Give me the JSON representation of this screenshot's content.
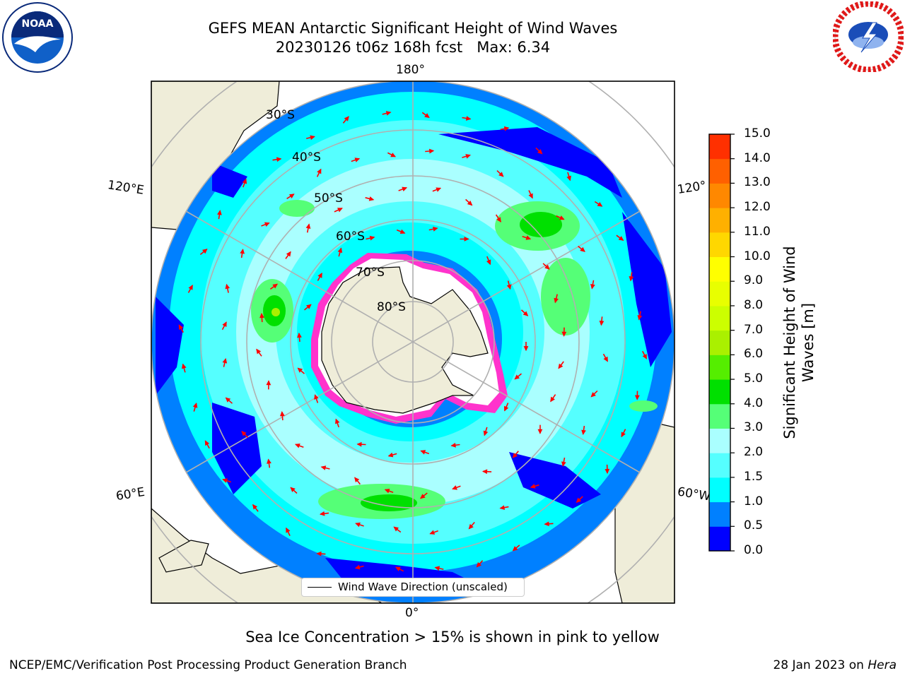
{
  "title": {
    "line1": "GEFS MEAN Antarctic Significant Height of Wind Waves",
    "line2": "20230126 t06z 168h fcst   Max: 6.34"
  },
  "logos": {
    "left": "NOAA",
    "right": "NATIONAL WEATHER SERVICE"
  },
  "map": {
    "projection": "south-polar-stereographic",
    "lon_labels": [
      "180°",
      "120°E",
      "120°",
      "60°E",
      "60°W",
      "0°"
    ],
    "lat_labels": [
      "30°S",
      "40°S",
      "50°S",
      "60°S",
      "70°S",
      "80°S"
    ],
    "colors": {
      "land": "#efedd9",
      "ice_pink": "#ff33cc",
      "arrows": "#ff0000",
      "graticule": "#b0b0b0"
    }
  },
  "legend": {
    "label": "Wind Wave Direction (unscaled)"
  },
  "colorbar": {
    "label": "Significant Height of Wind Waves [m]",
    "ticks": [
      "15.0",
      "14.0",
      "13.0",
      "12.0",
      "11.0",
      "10.0",
      "9.0",
      "8.0",
      "7.0",
      "6.0",
      "5.0",
      "4.0",
      "3.0",
      "2.0",
      "1.5",
      "1.0",
      "0.5",
      "0.0"
    ],
    "colors": [
      "#0000ff",
      "#0080ff",
      "#00ffff",
      "#55ffff",
      "#aaffff",
      "#55ff77",
      "#00e000",
      "#55ee00",
      "#aaf000",
      "#ccff00",
      "#e8ff00",
      "#ffff00",
      "#ffd700",
      "#ffb000",
      "#ff8800",
      "#ff6000",
      "#ff3000",
      "#ff0000"
    ]
  },
  "caption": "Sea Ice Concentration > 15% is shown in pink to yellow",
  "footer": {
    "credit": "NCEP/EMC/Verification Post Processing Product Generation Branch",
    "date": "28 Jan 2023 on",
    "system": "Hera"
  }
}
